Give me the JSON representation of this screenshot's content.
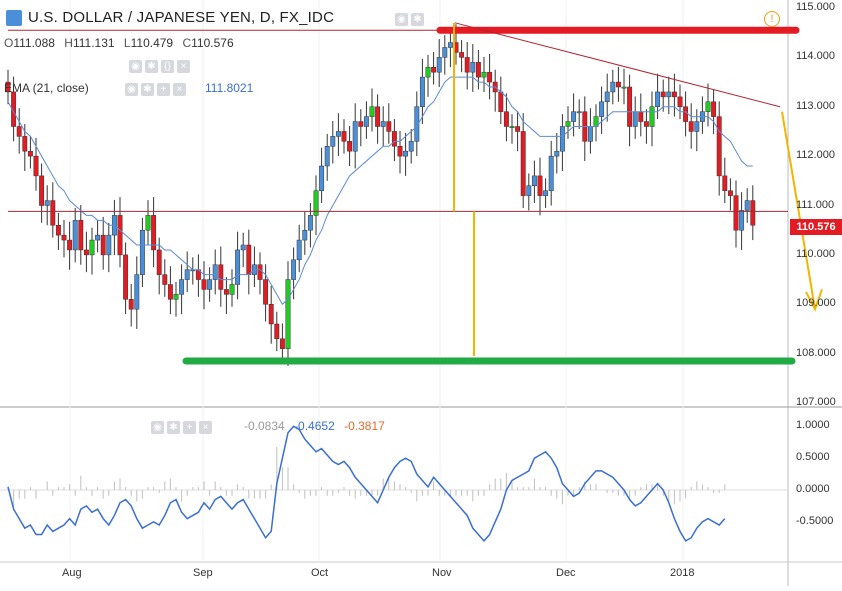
{
  "header": {
    "title": "U.S. DOLLAR / JAPANESE YEN, D, FX_IDC",
    "ohlc": [
      {
        "key": "O",
        "value": "111.088"
      },
      {
        "key": "H",
        "value": "111.131"
      },
      {
        "key": "L",
        "value": "110.479"
      },
      {
        "key": "C",
        "value": "110.576"
      }
    ],
    "ema_label": "EMA (21, close)",
    "ema_value": "111.8021",
    "osc_values": [
      "-0.0834",
      "-0.4652",
      "-0.3817"
    ],
    "alert_glyph": "!"
  },
  "last_price_badge": "110.576",
  "colors": {
    "up": "#22cc22",
    "down": "#e31b23",
    "bodyUp": "#4a90d9",
    "ema": "#5b8bd6",
    "resistance": "#e31b23",
    "support": "#22aa44",
    "trend": "#b3262e",
    "projection": "#f5b400",
    "osc_line": "#3a6fd1",
    "hist": "#bfbfbf"
  },
  "chart_data": [
    {
      "type": "candlestick",
      "title": "",
      "ylim": [
        107,
        115
      ],
      "y_ticks": [
        "115.000",
        "114.000",
        "113.000",
        "112.000",
        "111.000",
        "110.000",
        "109.000",
        "108.000",
        "107.000"
      ],
      "x_ticks": [
        "Aug",
        "Sep",
        "Oct",
        "Nov",
        "Dec",
        "2018"
      ],
      "close": [
        113.3,
        112.6,
        112.4,
        112.1,
        112.0,
        111.6,
        111.0,
        111.1,
        110.6,
        110.4,
        110.3,
        110.1,
        110.7,
        110.1,
        110.0,
        110.3,
        110.4,
        110.0,
        110.4,
        110.8,
        110.0,
        109.1,
        108.9,
        109.6,
        110.5,
        110.8,
        110.1,
        109.6,
        109.4,
        109.1,
        109.2,
        109.5,
        109.7,
        109.7,
        109.5,
        109.3,
        109.5,
        109.8,
        109.3,
        109.2,
        109.4,
        110.1,
        110.2,
        109.6,
        109.8,
        109.5,
        109.0,
        108.6,
        108.3,
        108.1,
        109.5,
        109.9,
        110.3,
        110.5,
        110.8,
        111.3,
        111.8,
        112.2,
        112.4,
        112.5,
        112.3,
        112.1,
        112.7,
        112.6,
        112.8,
        113.0,
        112.6,
        112.7,
        112.5,
        112.2,
        112.0,
        112.1,
        112.3,
        113.0,
        113.6,
        113.8,
        113.7,
        114.0,
        114.2,
        114.3,
        114.1,
        114.0,
        113.7,
        113.9,
        113.6,
        113.7,
        113.5,
        113.3,
        112.9,
        112.6,
        112.6,
        112.5,
        111.2,
        111.4,
        111.6,
        111.2,
        111.3,
        112.0,
        112.1,
        112.6,
        112.7,
        112.9,
        112.9,
        112.3,
        112.6,
        112.8,
        113.1,
        113.3,
        113.5,
        113.4,
        113.4,
        112.6,
        112.9,
        112.7,
        112.6,
        113.0,
        113.3,
        113.2,
        113.3,
        113.2,
        113.0,
        112.7,
        112.5,
        112.7,
        112.9,
        113.1,
        112.8,
        111.6,
        111.3,
        111.2,
        110.5,
        110.9,
        111.1,
        110.6
      ],
      "ema": [
        113.1,
        112.9,
        112.7,
        112.5,
        112.4,
        112.2,
        112.0,
        111.8,
        111.6,
        111.4,
        111.3,
        111.1,
        111.0,
        110.9,
        110.8,
        110.8,
        110.7,
        110.7,
        110.6,
        110.6,
        110.5,
        110.4,
        110.3,
        110.2,
        110.2,
        110.2,
        110.2,
        110.2,
        110.1,
        110.1,
        110.0,
        109.9,
        109.8,
        109.7,
        109.7,
        109.6,
        109.6,
        109.6,
        109.5,
        109.5,
        109.5,
        109.6,
        109.6,
        109.6,
        109.7,
        109.7,
        109.6,
        109.4,
        109.2,
        109.0,
        109.1,
        109.3,
        109.5,
        109.8,
        110.0,
        110.3,
        110.5,
        110.8,
        111.0,
        111.2,
        111.4,
        111.6,
        111.7,
        111.8,
        111.9,
        112.0,
        112.1,
        112.2,
        112.2,
        112.3,
        112.3,
        112.4,
        112.5,
        112.6,
        112.8,
        113.0,
        113.1,
        113.3,
        113.5,
        113.6,
        113.6,
        113.6,
        113.6,
        113.6,
        113.5,
        113.5,
        113.4,
        113.4,
        113.3,
        113.2,
        113.0,
        112.9,
        112.7,
        112.6,
        112.5,
        112.4,
        112.4,
        112.4,
        112.4,
        112.4,
        112.5,
        112.6,
        112.6,
        112.6,
        112.6,
        112.6,
        112.7,
        112.8,
        112.9,
        112.9,
        112.9,
        112.9,
        112.9,
        112.9,
        112.9,
        112.9,
        112.9,
        113.0,
        113.0,
        113.0,
        112.9,
        112.9,
        112.8,
        112.8,
        112.8,
        112.8,
        112.7,
        112.5,
        112.4,
        112.3,
        112.1,
        111.9,
        111.8,
        111.8
      ],
      "annotations": {
        "resistance_level": 114.55,
        "support_level": 107.85,
        "mid_level": 110.88
      }
    },
    {
      "type": "line",
      "ylim": [
        -1.1,
        1.1
      ],
      "y_ticks": [
        "1.0000",
        "0.5000",
        "0.0000",
        "-0.5000"
      ],
      "line": [
        0.05,
        -0.3,
        -0.45,
        -0.6,
        -0.55,
        -0.7,
        -0.7,
        -0.55,
        -0.65,
        -0.6,
        -0.55,
        -0.45,
        -0.55,
        -0.3,
        -0.25,
        -0.35,
        -0.3,
        -0.45,
        -0.55,
        -0.4,
        -0.2,
        -0.15,
        -0.25,
        -0.45,
        -0.6,
        -0.55,
        -0.5,
        -0.55,
        -0.4,
        -0.2,
        -0.15,
        -0.35,
        -0.45,
        -0.4,
        -0.35,
        -0.2,
        -0.3,
        -0.15,
        -0.1,
        -0.2,
        -0.3,
        -0.2,
        -0.15,
        -0.3,
        -0.45,
        -0.6,
        -0.75,
        -0.65,
        0.1,
        0.5,
        0.9,
        1.0,
        0.95,
        0.8,
        0.7,
        0.6,
        0.65,
        0.55,
        0.45,
        0.4,
        0.45,
        0.35,
        0.2,
        0.1,
        0.0,
        -0.1,
        -0.2,
        0.0,
        0.2,
        0.35,
        0.45,
        0.5,
        0.45,
        0.25,
        0.15,
        0.05,
        0.2,
        0.1,
        0.0,
        -0.1,
        -0.2,
        -0.3,
        -0.4,
        -0.6,
        -0.7,
        -0.8,
        -0.7,
        -0.5,
        -0.3,
        0.0,
        0.15,
        0.2,
        0.25,
        0.3,
        0.5,
        0.55,
        0.6,
        0.5,
        0.35,
        0.1,
        0.0,
        -0.1,
        -0.05,
        0.1,
        0.2,
        0.3,
        0.3,
        0.25,
        0.2,
        0.1,
        0.0,
        -0.15,
        -0.25,
        -0.2,
        -0.1,
        0.0,
        0.1,
        0.0,
        -0.2,
        -0.45,
        -0.65,
        -0.8,
        -0.75,
        -0.6,
        -0.5,
        -0.45,
        -0.5,
        -0.55,
        -0.45
      ]
    }
  ]
}
